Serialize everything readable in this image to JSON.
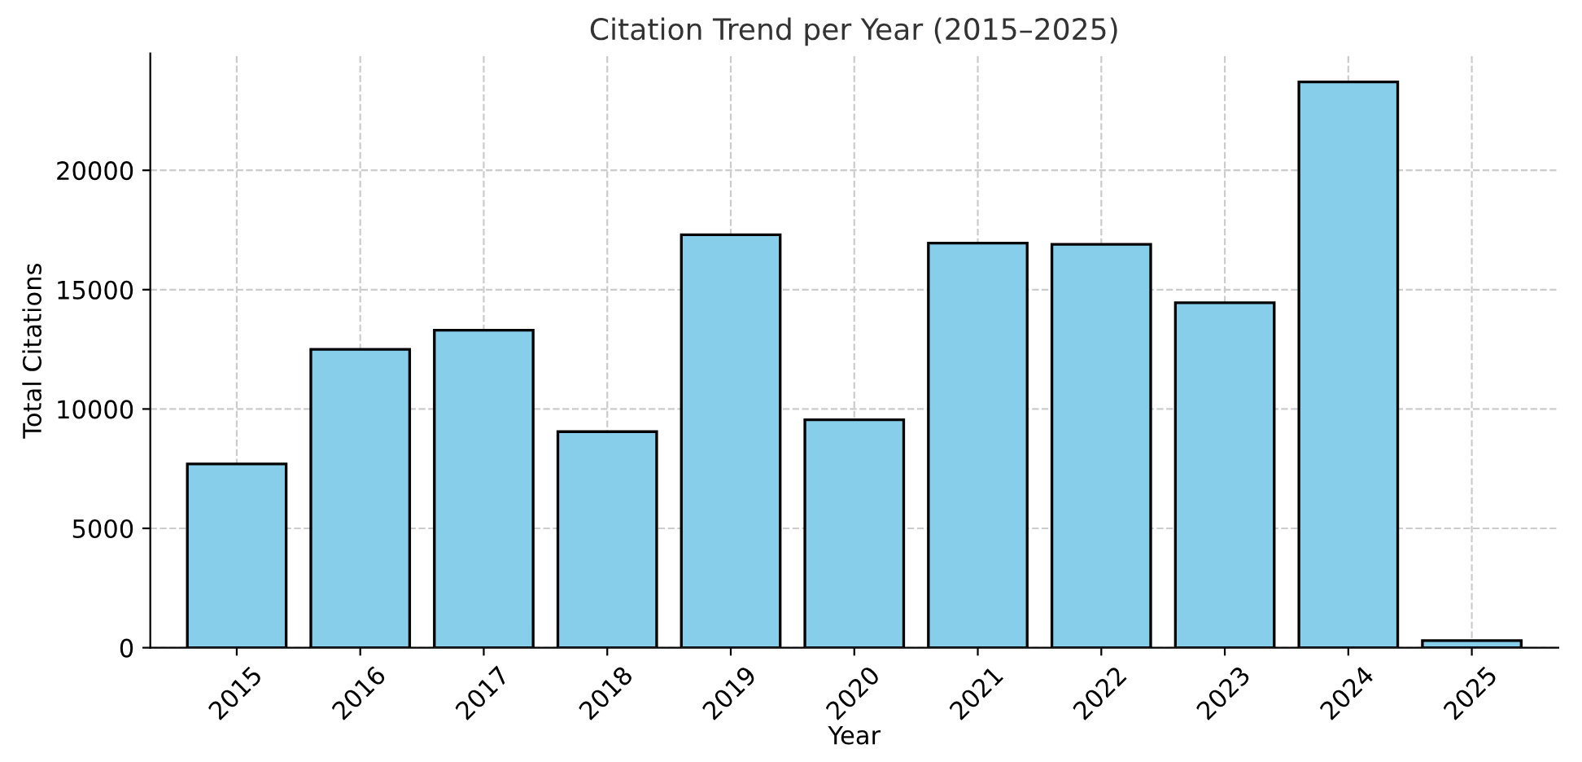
{
  "chart_data": {
    "type": "bar",
    "title": "Citation Trend per Year (2015–2025)",
    "xlabel": "Year",
    "ylabel": "Total Citations",
    "categories": [
      "2015",
      "2016",
      "2017",
      "2018",
      "2019",
      "2020",
      "2021",
      "2022",
      "2023",
      "2024",
      "2025"
    ],
    "values": [
      7700,
      12500,
      13300,
      9050,
      17300,
      9550,
      16950,
      16900,
      14450,
      23700,
      300
    ],
    "color": "#87ceeb",
    "ylim": [
      0,
      24900
    ],
    "yticks": [
      0,
      5000,
      10000,
      15000,
      20000
    ],
    "grid": true
  }
}
